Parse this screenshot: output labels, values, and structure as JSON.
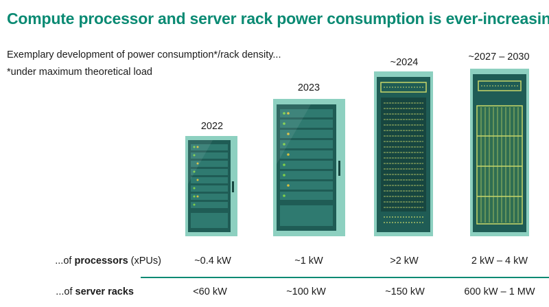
{
  "title": "Compute processor and server rack power consumption is ever-increasing",
  "subtitle": {
    "line1": "Exemplary development of power consumption*/rack density...",
    "line2": "*under maximum theoretical load"
  },
  "colors": {
    "accent": "#0a8a73",
    "rack_frame": "#8dd0c0",
    "rack_body": "#1f5c55",
    "rack_dark": "#174640",
    "led_green": "#7fd04a",
    "led_yellow": "#d8c040",
    "grill_yellow": "#c8d66a"
  },
  "years": [
    "2022",
    "2023",
    "~2024",
    "~2027 – 2030"
  ],
  "rows": {
    "processors": {
      "prefix": "...of ",
      "bold": "processors",
      "suffix": " (xPUs)",
      "values": [
        "~0.4 kW",
        "~1 kW",
        ">2 kW",
        "2 kW – 4 kW"
      ]
    },
    "racks": {
      "prefix": "...of ",
      "bold": "server racks",
      "values": [
        "<60 kW",
        "~100 kW",
        "~150 kW",
        "600 kW – 1 MW"
      ]
    }
  },
  "icons": [
    "server-rack-2022-icon",
    "server-rack-2023-icon",
    "server-rack-2024-icon",
    "server-rack-2030-icon"
  ]
}
